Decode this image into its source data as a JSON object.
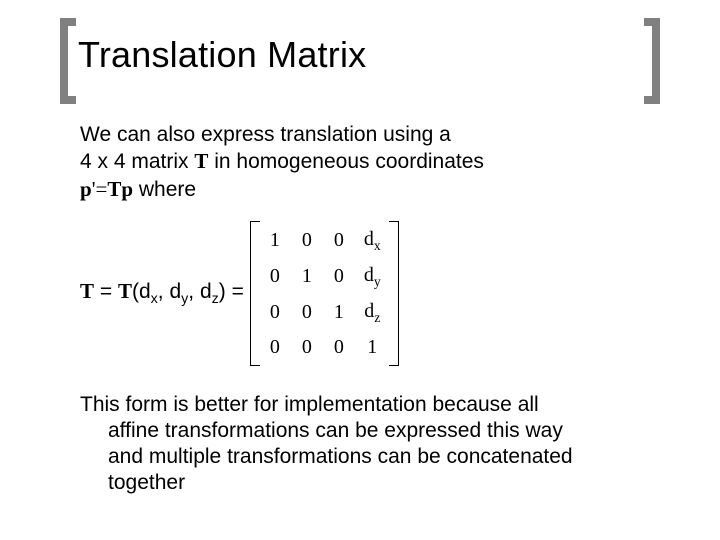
{
  "title": "Translation Matrix",
  "para1": {
    "line1": "We can also express translation using a",
    "line2_pre": "4 x 4 matrix ",
    "line2_T": "T",
    "line2_post": " in homogeneous coordinates",
    "line3_p": "p",
    "line3_prime_eq": "'=",
    "line3_T": "T",
    "line3_p2": "p",
    "line3_post": " where"
  },
  "equation": {
    "T1": "T",
    "eq1": " = ",
    "T2": "T",
    "open": "(d",
    "sx": "x",
    "c1": ", d",
    "sy": "y",
    "c2": ", d",
    "sz": "z",
    "close": ") ="
  },
  "matrix": {
    "rows": [
      [
        "1",
        "0",
        "0",
        "d<sub class=\"sub\">x</sub>"
      ],
      [
        "0",
        "1",
        "0",
        "d<sub class=\"sub\">y</sub>"
      ],
      [
        "0",
        "0",
        "1",
        "d<sub class=\"sub\">z</sub>"
      ],
      [
        "0",
        "0",
        "0",
        "1"
      ]
    ],
    "font_family": "Times New Roman",
    "cell_fontsize": 20,
    "bracket_color": "#000000"
  },
  "para2": {
    "line1": "This form is better for implementation because all",
    "line2": "affine transformations can be expressed this way",
    "line3": "and multiple transformations can be concatenated",
    "line4": "together"
  },
  "style": {
    "title_fontsize": 36,
    "body_fontsize": 21,
    "bracket_color": "#808080",
    "background": "#ffffff",
    "text_color": "#000000"
  }
}
